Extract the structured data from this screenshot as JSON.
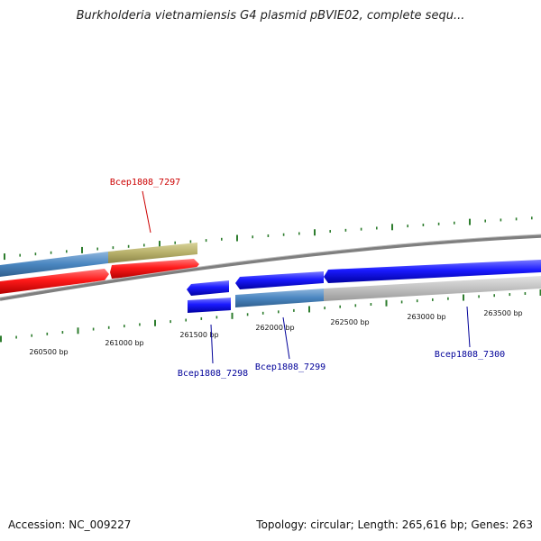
{
  "title": "Burkholderia vietnamiensis G4 plasmid pBVIE02, complete sequ...",
  "footer": {
    "accession": "Accession: NC_009227",
    "summary": "Topology: circular; Length: 265,616 bp; Genes: 263"
  },
  "ruler": {
    "labels": [
      "260500 bp",
      "261000 bp",
      "261500 bp",
      "262000 bp",
      "262500 bp",
      "263000 bp",
      "263500 bp"
    ]
  },
  "genes": [
    {
      "id": "Bcep1808_7297",
      "color": "#cc0000"
    },
    {
      "id": "Bcep1808_7298",
      "color": "#000099"
    },
    {
      "id": "Bcep1808_7299",
      "color": "#000099"
    },
    {
      "id": "Bcep1808_7300",
      "color": "#000099"
    }
  ],
  "colors": {
    "forward_gene": "#ff1a1a",
    "reverse_gene": "#1a1aff",
    "cds_blue": "#4a86c0",
    "cds_khaki": "#b7b06a",
    "cds_gray": "#c0c0c0",
    "backbone": "#8a8a8a",
    "tick": "#2e7d2e"
  }
}
